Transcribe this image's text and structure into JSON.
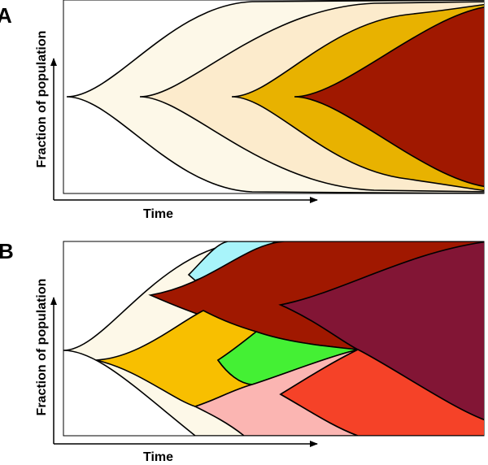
{
  "panels": [
    {
      "letter": "A",
      "ylabel": "Fraction of population",
      "xlabel": "Time"
    },
    {
      "letter": "B",
      "ylabel": "Fraction of population",
      "xlabel": "Time"
    }
  ],
  "colors": {
    "cream": "#fdf8e8",
    "beige": "#fcebcc",
    "gold": "#e8b200",
    "darkred": "#a01800",
    "cyan": "#a8f4fa",
    "orange": "#f8bf00",
    "green": "#44f034",
    "pink": "#fbb5b2",
    "red": "#f54228",
    "maroon": "#821535"
  }
}
